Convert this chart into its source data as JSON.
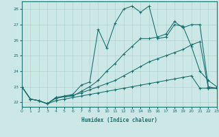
{
  "title": "",
  "xlabel": "Humidex (Indice chaleur)",
  "xlim": [
    0,
    23
  ],
  "ylim": [
    21.7,
    28.5
  ],
  "xticks": [
    0,
    1,
    2,
    3,
    4,
    5,
    6,
    7,
    8,
    9,
    10,
    11,
    12,
    13,
    14,
    15,
    16,
    17,
    18,
    19,
    20,
    21,
    22,
    23
  ],
  "yticks": [
    22,
    23,
    24,
    25,
    26,
    27,
    28
  ],
  "bg_color": "#cce8e6",
  "grid_color": "#aed4d2",
  "line_color": "#1a7070",
  "line1_x": [
    0,
    1,
    2,
    3,
    4,
    5,
    6,
    7,
    8,
    9,
    10,
    11,
    12,
    13,
    14,
    15,
    16,
    17,
    18,
    19,
    20,
    21,
    22,
    23
  ],
  "line1_y": [
    23.0,
    22.2,
    22.1,
    21.9,
    22.3,
    22.4,
    22.5,
    23.1,
    23.3,
    26.7,
    25.5,
    27.1,
    28.0,
    28.2,
    27.8,
    28.2,
    26.1,
    26.2,
    27.0,
    26.9,
    25.6,
    24.0,
    23.4,
    23.0
  ],
  "line2_x": [
    0,
    1,
    2,
    3,
    4,
    5,
    6,
    7,
    8,
    9,
    10,
    11,
    12,
    13,
    14,
    15,
    16,
    17,
    18,
    19,
    20,
    21,
    22,
    23
  ],
  "line2_y": [
    23.0,
    22.2,
    22.1,
    21.9,
    22.3,
    22.35,
    22.4,
    22.7,
    23.0,
    23.4,
    24.0,
    24.5,
    25.1,
    25.6,
    26.1,
    26.1,
    26.2,
    26.4,
    27.2,
    26.8,
    27.0,
    27.0,
    23.0,
    22.9
  ],
  "line3_x": [
    0,
    1,
    2,
    3,
    4,
    5,
    6,
    7,
    8,
    9,
    10,
    11,
    12,
    13,
    14,
    15,
    16,
    17,
    18,
    19,
    20,
    21,
    22,
    23
  ],
  "line3_y": [
    23.0,
    22.2,
    22.1,
    21.9,
    22.25,
    22.35,
    22.45,
    22.6,
    22.8,
    23.0,
    23.2,
    23.4,
    23.7,
    24.0,
    24.3,
    24.6,
    24.8,
    25.0,
    25.2,
    25.4,
    25.7,
    25.9,
    22.9,
    22.9
  ],
  "line4_x": [
    0,
    1,
    2,
    3,
    4,
    5,
    6,
    7,
    8,
    9,
    10,
    11,
    12,
    13,
    14,
    15,
    16,
    17,
    18,
    19,
    20,
    21,
    22,
    23
  ],
  "line4_y": [
    23.0,
    22.2,
    22.1,
    21.9,
    22.1,
    22.2,
    22.3,
    22.4,
    22.5,
    22.6,
    22.7,
    22.8,
    22.9,
    23.0,
    23.1,
    23.2,
    23.3,
    23.4,
    23.5,
    23.6,
    23.7,
    22.9,
    22.9,
    22.9
  ]
}
